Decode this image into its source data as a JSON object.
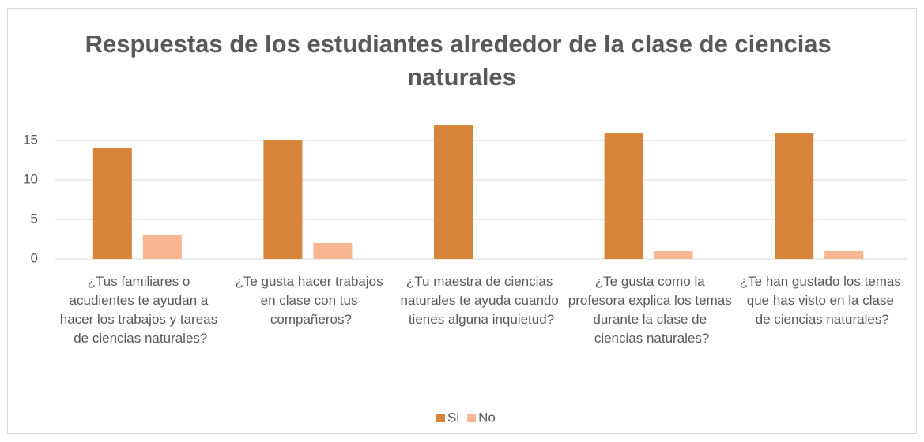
{
  "chart_data": {
    "type": "bar",
    "title": "Respuestas de los estudiantes alrededor de la clase de ciencias naturales",
    "categories": [
      "¿Tus familiares o acudientes te ayudan a hacer los trabajos y tareas de ciencias naturales?",
      "¿Te gusta hacer trabajos en clase con tus compañeros?",
      "¿Tu maestra de ciencias naturales te ayuda cuando tienes alguna inquietud?",
      "¿Te gusta como la profesora explica los temas durante  la clase de ciencias naturales?",
      "¿Te han gustado los temas que has visto en la clase de ciencias naturales?"
    ],
    "series": [
      {
        "name": "Si",
        "color": "#d9843b",
        "values": [
          14,
          15,
          17,
          16,
          16
        ]
      },
      {
        "name": "No",
        "color": "#f8b592",
        "values": [
          3,
          2,
          0,
          1,
          1
        ]
      }
    ],
    "ylim": [
      0,
      18
    ],
    "yticks": [
      0,
      5,
      10,
      15
    ],
    "grid": true,
    "legend": "bottom"
  }
}
